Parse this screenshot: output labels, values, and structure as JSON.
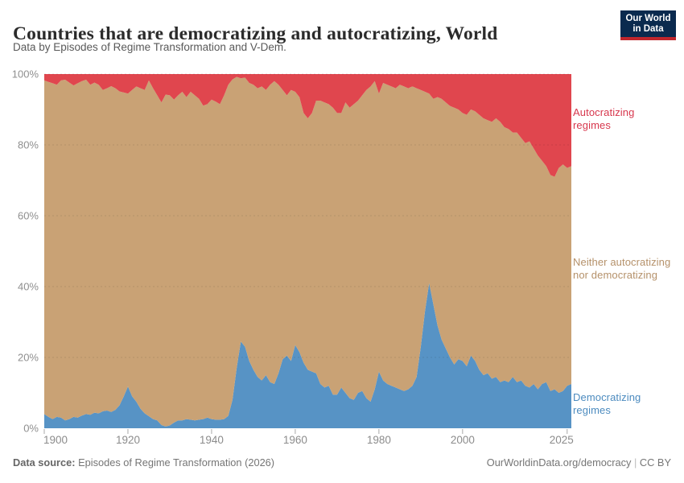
{
  "header": {
    "title": "Countries that are democratizing and autocratizing, World",
    "subtitle": "Data by Episodes of Regime Transformation and V-Dem.",
    "logo": {
      "line1": "Our World",
      "line2": "in Data",
      "bg_color": "#0a2a4e",
      "accent_color": "#c0262c"
    }
  },
  "chart_data": {
    "type": "area",
    "stacked": true,
    "title": "Countries that are democratizing and autocratizing, World",
    "x_start": 1900,
    "x_end": 2026,
    "ylim": [
      0,
      100
    ],
    "grid": true,
    "legend_position": "right",
    "x_ticks": [
      {
        "year": 1900,
        "label": "1900"
      },
      {
        "year": 1920,
        "label": "1920"
      },
      {
        "year": 1940,
        "label": "1940"
      },
      {
        "year": 1960,
        "label": "1960"
      },
      {
        "year": 1980,
        "label": "1980"
      },
      {
        "year": 2000,
        "label": "2000"
      },
      {
        "year": 2025,
        "label": "2025"
      }
    ],
    "y_ticks": [
      {
        "value": 0,
        "label": "0%"
      },
      {
        "value": 20,
        "label": "20%"
      },
      {
        "value": 40,
        "label": "40%"
      },
      {
        "value": 60,
        "label": "60%"
      },
      {
        "value": 80,
        "label": "80%"
      },
      {
        "value": 100,
        "label": "100%"
      }
    ],
    "y_gridlines": [
      20,
      40,
      60,
      80,
      100
    ],
    "x_unit": "year",
    "y_unit": "% of countries",
    "series": [
      {
        "name": "Democratizing regimes",
        "color": "#5793c5",
        "label_color": "#4c8bbf",
        "values": [
          4.0,
          3.2,
          2.6,
          3.2,
          3.0,
          2.2,
          2.6,
          3.2,
          3.0,
          3.6,
          4.0,
          3.8,
          4.4,
          4.2,
          4.8,
          5.0,
          4.6,
          5.2,
          6.5,
          9.0,
          11.8,
          9.0,
          7.5,
          5.5,
          4.2,
          3.4,
          2.6,
          2.2,
          0.9,
          0.5,
          0.8,
          1.6,
          2.2,
          2.2,
          2.6,
          2.4,
          2.2,
          2.4,
          2.6,
          3.0,
          2.6,
          2.4,
          2.4,
          2.6,
          3.5,
          8.0,
          17.0,
          24.5,
          23.0,
          19.0,
          16.5,
          14.5,
          13.5,
          15.0,
          13.0,
          12.5,
          15.5,
          19.5,
          20.5,
          19.0,
          23.5,
          21.5,
          18.5,
          16.5,
          16.0,
          15.5,
          12.5,
          11.5,
          12.0,
          9.5,
          9.5,
          11.5,
          10.0,
          8.5,
          8.0,
          10.0,
          10.5,
          8.5,
          7.5,
          11.0,
          16.0,
          13.5,
          12.5,
          12.0,
          11.5,
          11.0,
          10.5,
          11.0,
          12.0,
          14.5,
          23.0,
          33.0,
          41.0,
          35.0,
          29.0,
          25.0,
          22.5,
          20.0,
          18.0,
          19.5,
          19.0,
          17.5,
          20.5,
          19.0,
          16.5,
          15.0,
          15.5,
          14.0,
          14.5,
          13.0,
          13.5,
          13.0,
          14.5,
          13.0,
          13.5,
          12.0,
          11.5,
          12.5,
          11.0,
          12.5,
          13.0,
          10.5,
          11.0,
          10.0,
          10.5,
          12.0,
          12.5
        ]
      },
      {
        "name": "Neither autocratizing nor democratizing",
        "color": "#c9a275",
        "label_color": "#b5916a",
        "computed": "remainder_to_100"
      },
      {
        "name": "Autocratizing regimes",
        "color": "#e0464e",
        "label_color": "#d7374d",
        "values": [
          1.8,
          2.2,
          2.6,
          3.0,
          1.8,
          1.6,
          2.4,
          3.2,
          2.6,
          2.0,
          1.6,
          3.0,
          2.4,
          3.0,
          4.5,
          4.0,
          3.4,
          4.0,
          4.9,
          5.2,
          5.5,
          4.5,
          3.5,
          4.0,
          4.5,
          1.8,
          4.0,
          6.0,
          8.0,
          5.8,
          6.0,
          7.2,
          6.0,
          5.0,
          6.5,
          5.0,
          6.0,
          7.0,
          8.9,
          8.5,
          7.2,
          7.8,
          8.5,
          6.0,
          3.0,
          1.5,
          0.8,
          1.2,
          1.0,
          2.5,
          3.0,
          4.0,
          3.5,
          4.5,
          3.0,
          2.0,
          3.0,
          4.5,
          6.0,
          4.5,
          5.0,
          6.5,
          11.0,
          12.5,
          11.0,
          7.5,
          7.5,
          8.0,
          8.5,
          9.5,
          11.0,
          11.0,
          8.0,
          9.5,
          8.5,
          7.5,
          6.0,
          4.5,
          3.5,
          2.0,
          5.5,
          2.5,
          3.0,
          3.5,
          4.0,
          3.0,
          3.5,
          4.0,
          3.5,
          4.0,
          4.5,
          5.0,
          5.5,
          7.0,
          6.5,
          7.0,
          8.0,
          9.0,
          9.5,
          10.0,
          11.0,
          11.5,
          10.0,
          10.5,
          11.5,
          12.5,
          13.0,
          13.5,
          12.5,
          13.5,
          15.0,
          15.5,
          16.5,
          16.5,
          18.0,
          19.5,
          19.0,
          21.0,
          23.0,
          24.5,
          26.0,
          28.5,
          29.0,
          26.5,
          25.5,
          26.5,
          26.0
        ]
      }
    ]
  },
  "footer": {
    "data_source_label": "Data source:",
    "data_source_value": "Episodes of Regime Transformation (2026)",
    "link": "OurWorldinData.org/democracy",
    "separator": "|",
    "license": "CC BY"
  }
}
